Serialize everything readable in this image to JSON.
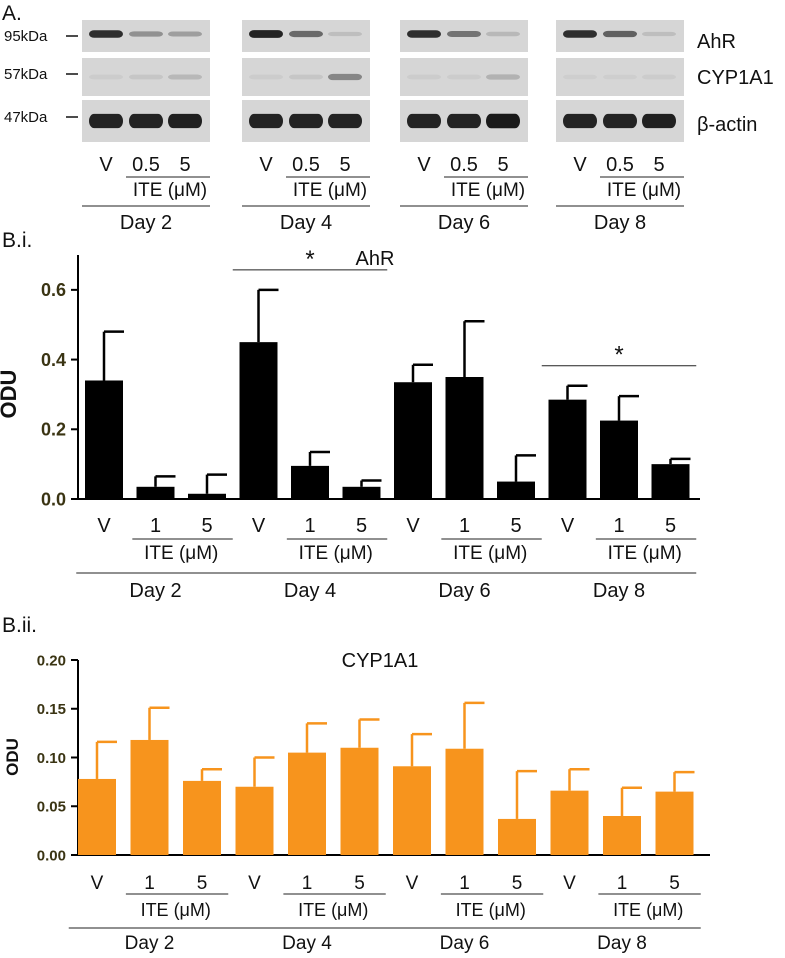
{
  "blot": {
    "panel_label": "A.",
    "mw_markers": [
      "95kDa",
      "57kDa",
      "47kDa"
    ],
    "proteins": [
      "AhR",
      "CYP1A1",
      "β-actin"
    ],
    "lanes": [
      "V",
      "0.5",
      "5"
    ],
    "treatment_label": "ITE (μM)",
    "days": [
      "Day 2",
      "Day 4",
      "Day 6",
      "Day 8"
    ],
    "band_intensity": {
      "AhR": [
        [
          0.85,
          0.35,
          0.28
        ],
        [
          0.9,
          0.55,
          0.12
        ],
        [
          0.85,
          0.5,
          0.15
        ],
        [
          0.85,
          0.6,
          0.12
        ]
      ],
      "CYP1A1": [
        [
          0.05,
          0.08,
          0.15
        ],
        [
          0.05,
          0.08,
          0.4
        ],
        [
          0.05,
          0.05,
          0.18
        ],
        [
          0.03,
          0.03,
          0.05
        ]
      ],
      "β-actin": [
        [
          0.9,
          0.9,
          0.92
        ],
        [
          0.9,
          0.9,
          0.9
        ],
        [
          0.9,
          0.9,
          0.95
        ],
        [
          0.9,
          0.9,
          0.92
        ]
      ]
    },
    "colors": {
      "background": "#d6d6d6",
      "band": "#101010"
    }
  },
  "chart_data": [
    {
      "type": "bar",
      "panel_label": "B.i.",
      "title": "AhR",
      "ylabel": "ODU",
      "ylim": [
        0,
        0.7
      ],
      "yticks": [
        "0.0",
        "0.2",
        "0.4",
        "0.6"
      ],
      "categories": [
        "V",
        "1",
        "5",
        "V",
        "1",
        "5",
        "V",
        "1",
        "5",
        "V",
        "1",
        "5"
      ],
      "groups": [
        "Day 2",
        "Day 4",
        "Day 6",
        "Day 8"
      ],
      "treatment_label": "ITE (μM)",
      "values": [
        0.34,
        0.035,
        0.015,
        0.45,
        0.095,
        0.035,
        0.335,
        0.35,
        0.05,
        0.285,
        0.225,
        0.1
      ],
      "errors": [
        0.14,
        0.03,
        0.055,
        0.15,
        0.04,
        0.018,
        0.05,
        0.16,
        0.075,
        0.04,
        0.07,
        0.015
      ],
      "significance": [
        {
          "label": "*",
          "group": "Day 4"
        },
        {
          "label": "*",
          "group": "Day 8"
        }
      ],
      "color": "#000000"
    },
    {
      "type": "bar",
      "panel_label": "B.ii.",
      "title": "CYP1A1",
      "ylabel": "ODU",
      "ylim": [
        0,
        0.2
      ],
      "yticks": [
        "0.00",
        "0.05",
        "0.10",
        "0.15",
        "0.20"
      ],
      "categories": [
        "V",
        "1",
        "5",
        "V",
        "1",
        "5",
        "V",
        "1",
        "5",
        "V",
        "1",
        "5"
      ],
      "groups": [
        "Day 2",
        "Day 4",
        "Day 6",
        "Day 8"
      ],
      "treatment_label": "ITE (μM)",
      "values": [
        0.078,
        0.118,
        0.076,
        0.07,
        0.105,
        0.11,
        0.091,
        0.109,
        0.037,
        0.066,
        0.04,
        0.065
      ],
      "errors": [
        0.038,
        0.033,
        0.012,
        0.03,
        0.03,
        0.029,
        0.033,
        0.047,
        0.049,
        0.022,
        0.029,
        0.02
      ],
      "significance": [],
      "color": "#f7941d"
    }
  ]
}
